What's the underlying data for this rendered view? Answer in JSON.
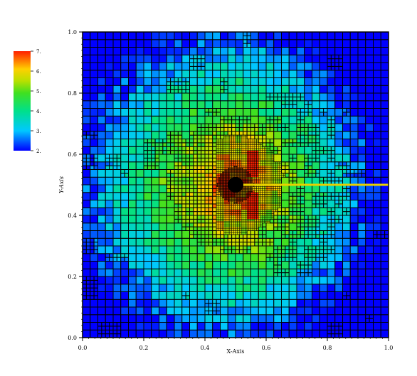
{
  "chart_data": {
    "type": "heatmap",
    "xlabel": "X-Axis",
    "ylabel": "Y-Axis",
    "xlim": [
      0,
      1
    ],
    "ylim": [
      0,
      1
    ],
    "x_ticks": [
      "0.0",
      "0.2",
      "0.4",
      "0.6",
      "0.8",
      "1.0"
    ],
    "y_ticks": [
      "0.0",
      "0.2",
      "0.4",
      "0.6",
      "0.8",
      "1.0"
    ],
    "colorbar": {
      "range": [
        2,
        7
      ],
      "tick_labels": [
        "2.",
        "3.",
        "4.",
        "5.",
        "6.",
        "7."
      ],
      "colormap": [
        "#0000ff",
        "#00c8ff",
        "#00e08a",
        "#40e020",
        "#b8e000",
        "#ffd000",
        "#ff8000",
        "#ff2000"
      ]
    },
    "field": {
      "description_of_peak": "maximum near (0.5, 0.5) decreasing outward; adaptive mesh refinement concentrated around the center",
      "peak_value": 7,
      "min_value": 2
    },
    "line_overlay": {
      "color": "#e8d000",
      "x": [
        0.5,
        1.0
      ],
      "y": [
        0.5,
        0.5
      ]
    },
    "center_marker": {
      "x": 0.5,
      "y": 0.5
    }
  }
}
